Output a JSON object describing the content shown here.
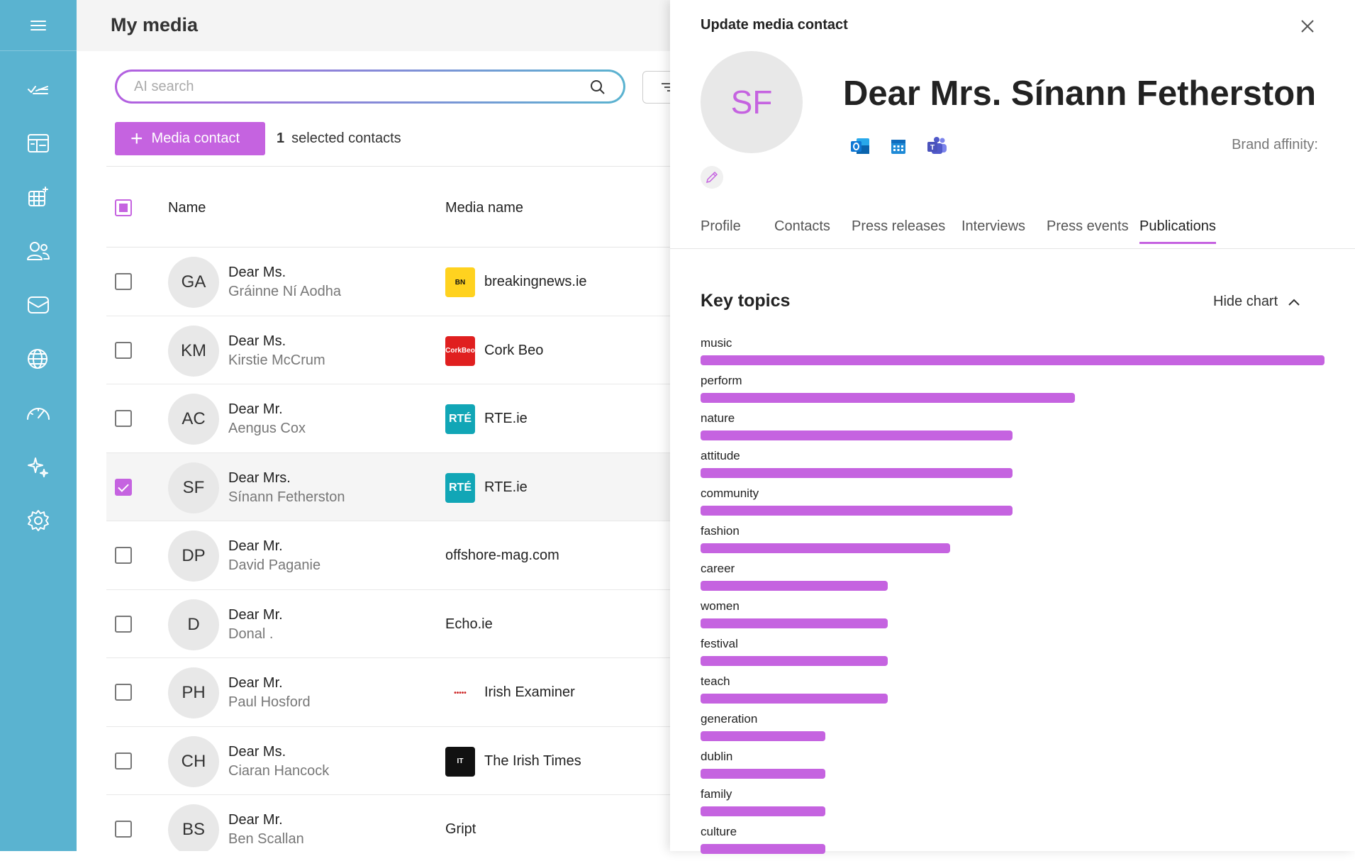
{
  "page": {
    "title": "My media"
  },
  "search": {
    "placeholder": "AI search"
  },
  "toolbar": {
    "add_label": "Media contact",
    "selected_count": "1",
    "selected_label": "selected contacts"
  },
  "table": {
    "col_name": "Name",
    "col_media": "Media name"
  },
  "contacts": [
    {
      "initials": "GA",
      "salutation": "Dear Ms.",
      "name": "Gráinne Ní Aodha",
      "media": "breakingnews.ie",
      "checked": false,
      "logo": "bn"
    },
    {
      "initials": "KM",
      "salutation": "Dear Ms.",
      "name": "Kirstie McCrum",
      "media": "Cork Beo",
      "checked": false,
      "logo": "cork"
    },
    {
      "initials": "AC",
      "salutation": "Dear Mr.",
      "name": "Aengus Cox",
      "media": "RTE.ie",
      "checked": false,
      "logo": "rte"
    },
    {
      "initials": "SF",
      "salutation": "Dear Mrs.",
      "name": "Sínann Fetherston",
      "media": "RTE.ie",
      "checked": true,
      "logo": "rte"
    },
    {
      "initials": "DP",
      "salutation": "Dear Mr.",
      "name": "David Paganie",
      "media": "offshore-mag.com",
      "checked": false,
      "logo": ""
    },
    {
      "initials": "D",
      "salutation": "Dear Mr.",
      "name": "Donal .",
      "media": "Echo.ie",
      "checked": false,
      "logo": ""
    },
    {
      "initials": "PH",
      "salutation": "Dear Mr.",
      "name": "Paul Hosford",
      "media": "Irish Examiner",
      "checked": false,
      "logo": "examiner"
    },
    {
      "initials": "CH",
      "salutation": "Dear Ms.",
      "name": "Ciaran Hancock",
      "media": "The Irish Times",
      "checked": false,
      "logo": "times"
    },
    {
      "initials": "BS",
      "salutation": "Dear Mr.",
      "name": "Ben Scallan",
      "media": "Gript",
      "checked": false,
      "logo": ""
    }
  ],
  "panel": {
    "title": "Update media contact",
    "avatar_initials": "SF",
    "contact_name": "Dear Mrs. Sínann Fetherston",
    "brand_affinity": "Brand affinity:",
    "apps": [
      "outlook-icon",
      "calendar-icon",
      "teams-icon"
    ],
    "tabs": [
      "Profile",
      "Contacts",
      "Press releases",
      "Interviews",
      "Press events",
      "Publications"
    ],
    "active_tab": "Publications",
    "section_title": "Key topics",
    "hide_chart_label": "Hide chart"
  },
  "chart_data": {
    "type": "bar",
    "orientation": "horizontal",
    "title": "Key topics",
    "categories": [
      "music",
      "perform",
      "nature",
      "attitude",
      "community",
      "fashion",
      "career",
      "women",
      "festival",
      "teach",
      "generation",
      "dublin",
      "family",
      "culture"
    ],
    "values": [
      10,
      6,
      5,
      5,
      5,
      4,
      3,
      3,
      3,
      3,
      2,
      2,
      2,
      2
    ],
    "color": "#c563e0"
  },
  "colors": {
    "sidebar": "#5ab3d0",
    "accent": "#c563e0"
  }
}
